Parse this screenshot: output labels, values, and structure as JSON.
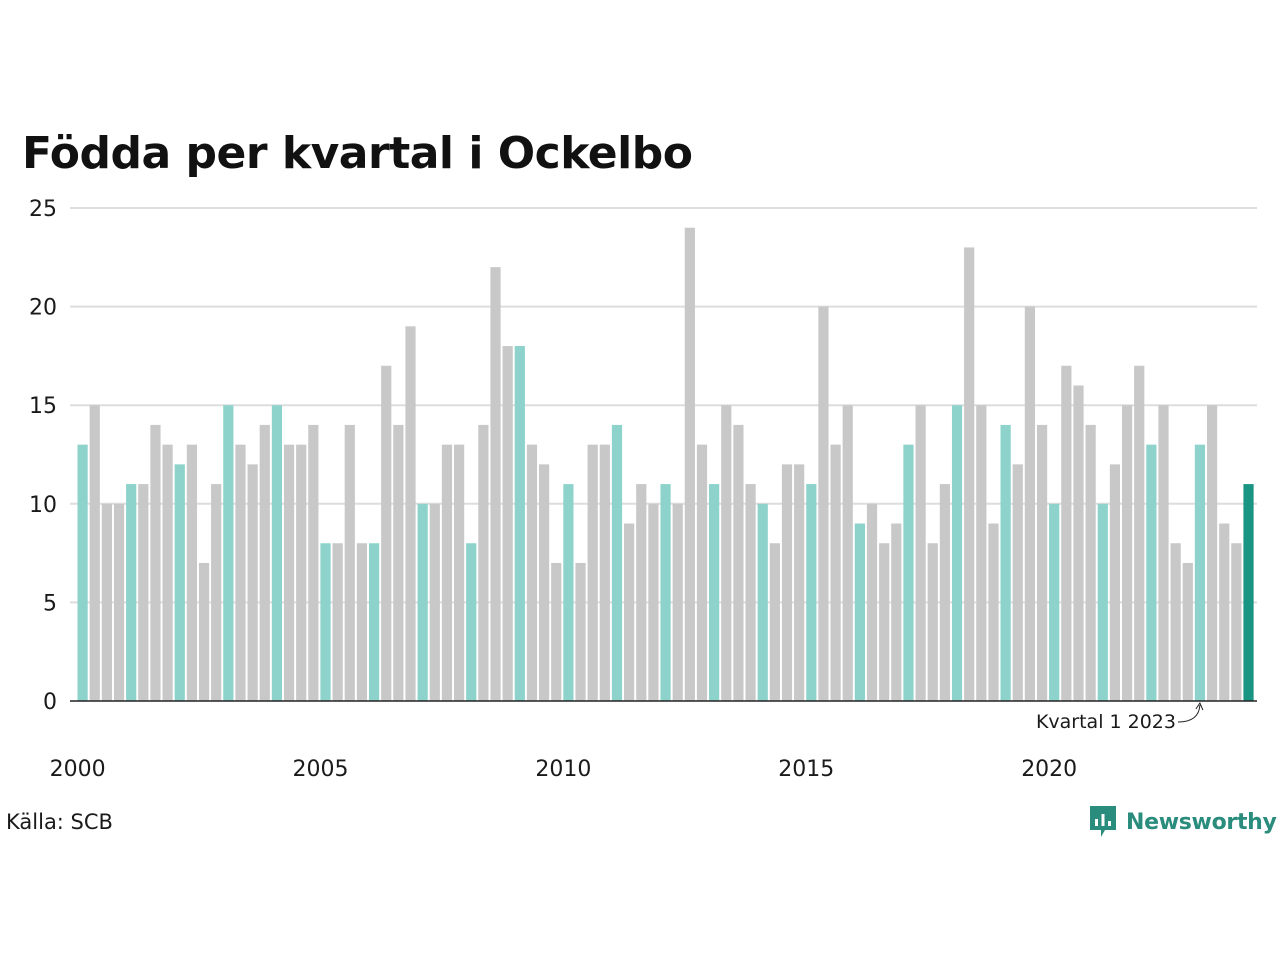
{
  "title": "Födda per kvartal i Ockelbo",
  "source": "Källa: SCB",
  "brand": {
    "name": "Newsworthy",
    "logo_icon": "newsworthy-logo-icon"
  },
  "annotation": {
    "text": "Kvartal 1 2023",
    "target_index": 92
  },
  "colors": {
    "bar_q1": "#8dd3cc",
    "bar_other": "#c8c8c8",
    "bar_latest": "#1a9483",
    "grid": "#dddddd",
    "axis": "#222222",
    "text": "#1a1a1a",
    "brand": "#2a8c7c"
  },
  "chart_data": {
    "type": "bar",
    "title": "Födda per kvartal i Ockelbo",
    "xlabel": "",
    "ylabel": "",
    "ylim": [
      0,
      25
    ],
    "yticks": [
      0,
      5,
      10,
      15,
      20,
      25
    ],
    "xticks": [
      "2000",
      "2005",
      "2010",
      "2015",
      "2020"
    ],
    "grid": true,
    "start_year": 2000,
    "quarters_per_year": 4,
    "values": [
      13,
      15,
      10,
      10,
      11,
      11,
      14,
      13,
      12,
      13,
      7,
      11,
      15,
      13,
      12,
      14,
      15,
      13,
      13,
      14,
      8,
      8,
      14,
      8,
      8,
      17,
      14,
      19,
      10,
      10,
      13,
      13,
      8,
      14,
      22,
      18,
      18,
      13,
      12,
      7,
      11,
      7,
      13,
      13,
      14,
      9,
      11,
      10,
      11,
      10,
      24,
      13,
      11,
      15,
      14,
      11,
      10,
      8,
      12,
      12,
      11,
      20,
      13,
      15,
      9,
      10,
      8,
      9,
      13,
      15,
      8,
      11,
      15,
      23,
      15,
      9,
      14,
      12,
      20,
      14,
      10,
      17,
      16,
      14,
      10,
      12,
      15,
      17,
      13,
      15,
      8,
      7,
      13,
      15,
      9,
      8,
      11
    ]
  }
}
